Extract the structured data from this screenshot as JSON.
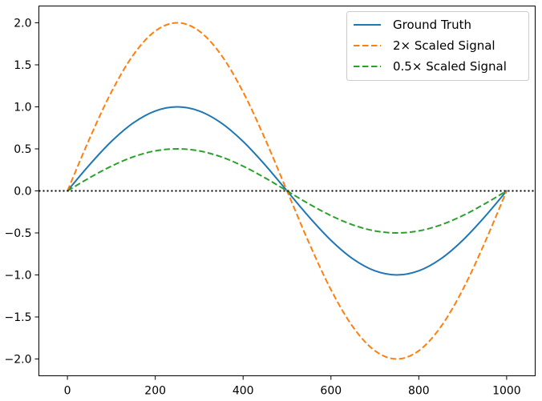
{
  "chart_data": {
    "type": "line",
    "title": "",
    "xlabel": "",
    "ylabel": "",
    "xlim": [
      -65,
      1065
    ],
    "ylim": [
      -2.2,
      2.2
    ],
    "x_ticks": [
      0,
      200,
      400,
      600,
      800,
      1000
    ],
    "x_tick_labels": [
      "0",
      "200",
      "400",
      "600",
      "800",
      "1000"
    ],
    "y_ticks": [
      2.0,
      1.5,
      1.0,
      0.5,
      0.0,
      -0.5,
      -1.0,
      -1.5,
      -2.0
    ],
    "y_tick_labels": [
      "2.0",
      "1.5",
      "1.0",
      "0.5",
      "0.0",
      "−0.5",
      "−1.0",
      "−1.5",
      "−2.0"
    ],
    "reference_line": {
      "y": 0.0,
      "style": "dotted",
      "color": "#000000"
    },
    "legend_position": "top-right",
    "series": [
      {
        "name": "Ground Truth",
        "color": "#1f77b4",
        "style": "solid",
        "x": [
          0,
          50,
          100,
          150,
          200,
          250,
          300,
          350,
          400,
          450,
          500,
          550,
          600,
          650,
          700,
          750,
          800,
          850,
          900,
          950,
          1000
        ],
        "values": [
          0.0,
          0.309,
          0.588,
          0.809,
          0.951,
          1.0,
          0.951,
          0.809,
          0.588,
          0.309,
          0.0,
          -0.309,
          -0.588,
          -0.809,
          -0.951,
          -1.0,
          -0.951,
          -0.809,
          -0.588,
          -0.309,
          0.0
        ]
      },
      {
        "name": "2× Scaled Signal",
        "color": "#ff7f0e",
        "style": "dashed",
        "x": [
          0,
          50,
          100,
          150,
          200,
          250,
          300,
          350,
          400,
          450,
          500,
          550,
          600,
          650,
          700,
          750,
          800,
          850,
          900,
          950,
          1000
        ],
        "values": [
          0.0,
          0.618,
          1.176,
          1.618,
          1.902,
          2.0,
          1.902,
          1.618,
          1.176,
          0.618,
          0.0,
          -0.618,
          -1.176,
          -1.618,
          -1.902,
          -2.0,
          -1.902,
          -1.618,
          -1.176,
          -0.618,
          0.0
        ]
      },
      {
        "name": "0.5× Scaled Signal",
        "color": "#2ca02c",
        "style": "dashed",
        "x": [
          0,
          50,
          100,
          150,
          200,
          250,
          300,
          350,
          400,
          450,
          500,
          550,
          600,
          650,
          700,
          750,
          800,
          850,
          900,
          950,
          1000
        ],
        "values": [
          0.0,
          0.155,
          0.294,
          0.405,
          0.476,
          0.5,
          0.476,
          0.405,
          0.294,
          0.155,
          0.0,
          -0.155,
          -0.294,
          -0.405,
          -0.476,
          -0.5,
          -0.476,
          -0.405,
          -0.294,
          -0.155,
          0.0
        ]
      }
    ]
  }
}
